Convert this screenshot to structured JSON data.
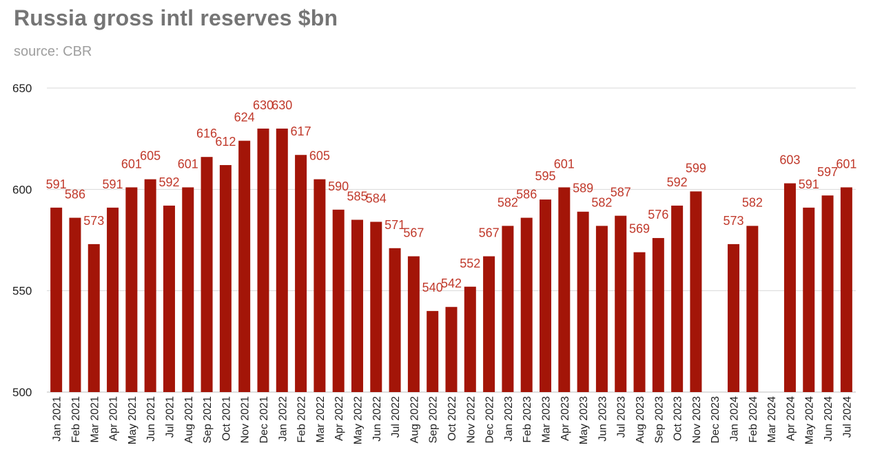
{
  "chart_data": {
    "type": "bar",
    "title": "Russia gross intl reserves $bn",
    "subtitle": "source: CBR",
    "xlabel": "",
    "ylabel": "",
    "ylim": [
      500,
      650
    ],
    "yticks": [
      650,
      600,
      550,
      500
    ],
    "grid": true,
    "legend": "none",
    "bar_color": "#a31508",
    "label_color": "#c0392b",
    "gridline_color": "#d9d9d9",
    "categories": [
      "Jan 2021",
      "Feb 2021",
      "Mar 2021",
      "Apr 2021",
      "May 2021",
      "Jun 2021",
      "Jul 2021",
      "Aug 2021",
      "Sep 2021",
      "Oct 2021",
      "Nov 2021",
      "Dec 2021",
      "Jan 2022",
      "Feb 2022",
      "Mar 2022",
      "Apr 2022",
      "May 2022",
      "Jun 2022",
      "Jul 2022",
      "Aug 2022",
      "Sep 2022",
      "Oct 2022",
      "Nov 2022",
      "Dec 2022",
      "Jan 2023",
      "Feb 2023",
      "Mar 2023",
      "Apr 2023",
      "May 2023",
      "Jun 2023",
      "Jul 2023",
      "Aug 2023",
      "Sep 2023",
      "Oct 2023",
      "Nov 2023",
      "Dec 2023",
      "Jan 2024",
      "Feb 2024",
      "Mar 2024",
      "Apr 2024",
      "May 2024",
      "Jun 2024",
      "Jul 2024"
    ],
    "values": [
      591,
      586,
      573,
      591,
      601,
      605,
      592,
      601,
      616,
      612,
      624,
      630,
      630,
      617,
      605,
      590,
      585,
      584,
      571,
      567,
      540,
      542,
      552,
      567,
      582,
      586,
      595,
      601,
      589,
      582,
      587,
      569,
      576,
      592,
      599,
      null,
      573,
      582,
      null,
      603,
      591,
      597,
      601
    ],
    "data_labels": [
      "591",
      "586",
      "573",
      "591",
      "601",
      "605",
      "592",
      "601",
      "616",
      "612",
      "624",
      "630",
      "630",
      "617",
      "605",
      "590",
      "585",
      "584",
      "571",
      "567",
      "540",
      "542",
      "552",
      "567",
      "582",
      "586",
      "595",
      "601",
      "589",
      "582",
      "587",
      "569",
      "576",
      "592",
      "599",
      "",
      "573",
      "582",
      "",
      "603",
      "591",
      "597",
      "601"
    ]
  }
}
